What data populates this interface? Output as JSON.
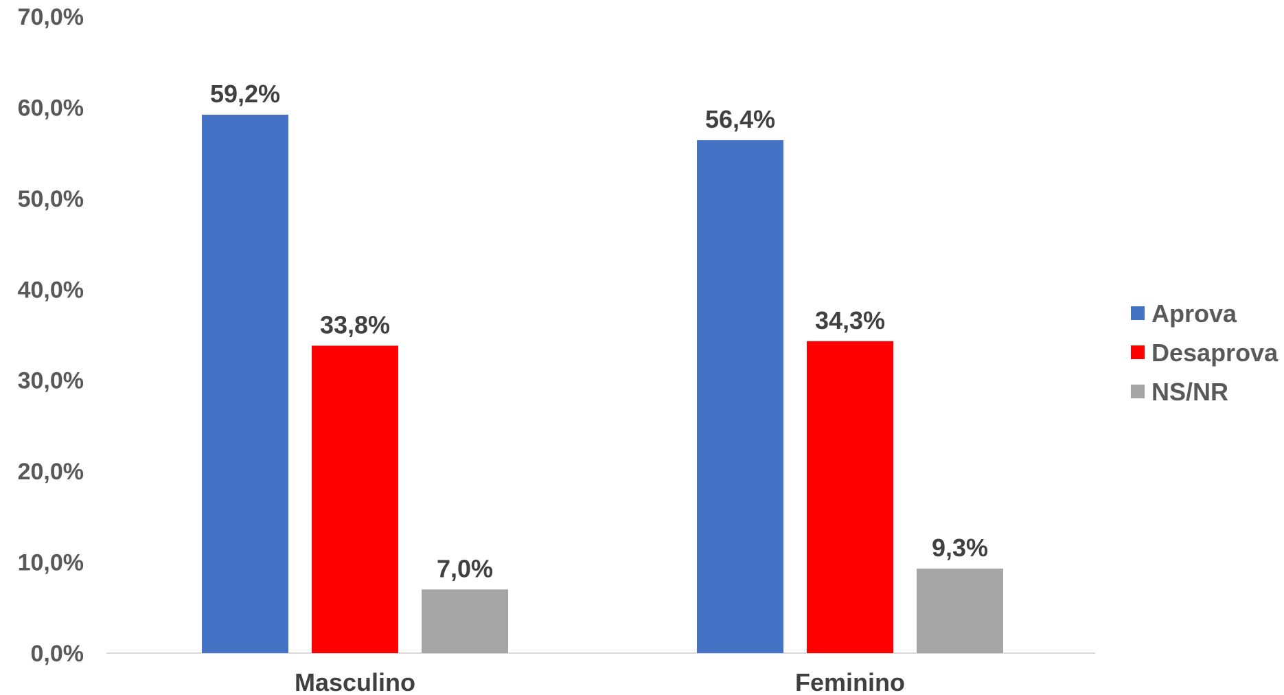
{
  "chart_data": {
    "type": "bar",
    "categories": [
      "Masculino",
      "Feminino"
    ],
    "series": [
      {
        "name": "Aprova",
        "color": "#4472C4",
        "values": [
          59.2,
          56.4
        ],
        "labels": [
          "59,2%",
          "56,4%"
        ]
      },
      {
        "name": "Desaprova",
        "color": "#FF0000",
        "values": [
          33.8,
          34.3
        ],
        "labels": [
          "33,8%",
          "34,3%"
        ]
      },
      {
        "name": "NS/NR",
        "color": "#A5A5A5",
        "values": [
          7.0,
          9.3
        ],
        "labels": [
          "7,0%",
          "9,3%"
        ]
      }
    ],
    "ylim": [
      0,
      70
    ],
    "yticks": [
      0,
      10,
      20,
      30,
      40,
      50,
      60,
      70
    ],
    "ytick_labels": [
      "0,0%",
      "10,0%",
      "20,0%",
      "30,0%",
      "40,0%",
      "50,0%",
      "60,0%",
      "70,0%"
    ],
    "legend_position": "right",
    "grid": false,
    "title": "",
    "xlabel": "",
    "ylabel": ""
  }
}
